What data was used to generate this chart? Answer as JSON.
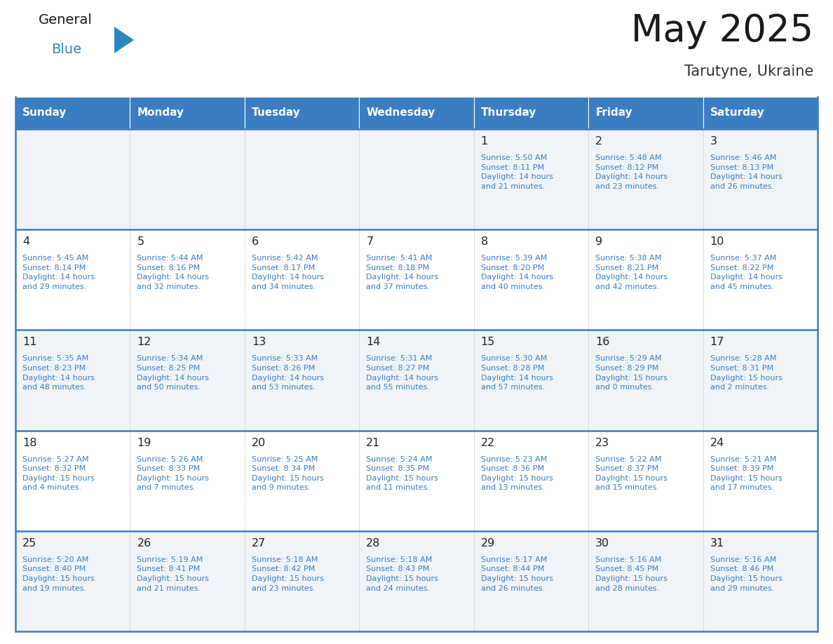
{
  "title": "May 2025",
  "subtitle": "Tarutyne, Ukraine",
  "days_of_week": [
    "Sunday",
    "Monday",
    "Tuesday",
    "Wednesday",
    "Thursday",
    "Friday",
    "Saturday"
  ],
  "header_bg": "#3A7DC0",
  "header_text": "#FFFFFF",
  "row_bg_light": "#F0F4F8",
  "row_bg_white": "#FFFFFF",
  "cell_text_color": "#3A7DC0",
  "day_num_color": "#222222",
  "separator_color": "#3A7DC0",
  "calendar_data": [
    [
      "",
      "",
      "",
      "",
      "1\nSunrise: 5:50 AM\nSunset: 8:11 PM\nDaylight: 14 hours\nand 21 minutes.",
      "2\nSunrise: 5:48 AM\nSunset: 8:12 PM\nDaylight: 14 hours\nand 23 minutes.",
      "3\nSunrise: 5:46 AM\nSunset: 8:13 PM\nDaylight: 14 hours\nand 26 minutes."
    ],
    [
      "4\nSunrise: 5:45 AM\nSunset: 8:14 PM\nDaylight: 14 hours\nand 29 minutes.",
      "5\nSunrise: 5:44 AM\nSunset: 8:16 PM\nDaylight: 14 hours\nand 32 minutes.",
      "6\nSunrise: 5:42 AM\nSunset: 8:17 PM\nDaylight: 14 hours\nand 34 minutes.",
      "7\nSunrise: 5:41 AM\nSunset: 8:18 PM\nDaylight: 14 hours\nand 37 minutes.",
      "8\nSunrise: 5:39 AM\nSunset: 8:20 PM\nDaylight: 14 hours\nand 40 minutes.",
      "9\nSunrise: 5:38 AM\nSunset: 8:21 PM\nDaylight: 14 hours\nand 42 minutes.",
      "10\nSunrise: 5:37 AM\nSunset: 8:22 PM\nDaylight: 14 hours\nand 45 minutes."
    ],
    [
      "11\nSunrise: 5:35 AM\nSunset: 8:23 PM\nDaylight: 14 hours\nand 48 minutes.",
      "12\nSunrise: 5:34 AM\nSunset: 8:25 PM\nDaylight: 14 hours\nand 50 minutes.",
      "13\nSunrise: 5:33 AM\nSunset: 8:26 PM\nDaylight: 14 hours\nand 53 minutes.",
      "14\nSunrise: 5:31 AM\nSunset: 8:27 PM\nDaylight: 14 hours\nand 55 minutes.",
      "15\nSunrise: 5:30 AM\nSunset: 8:28 PM\nDaylight: 14 hours\nand 57 minutes.",
      "16\nSunrise: 5:29 AM\nSunset: 8:29 PM\nDaylight: 15 hours\nand 0 minutes.",
      "17\nSunrise: 5:28 AM\nSunset: 8:31 PM\nDaylight: 15 hours\nand 2 minutes."
    ],
    [
      "18\nSunrise: 5:27 AM\nSunset: 8:32 PM\nDaylight: 15 hours\nand 4 minutes.",
      "19\nSunrise: 5:26 AM\nSunset: 8:33 PM\nDaylight: 15 hours\nand 7 minutes.",
      "20\nSunrise: 5:25 AM\nSunset: 8:34 PM\nDaylight: 15 hours\nand 9 minutes.",
      "21\nSunrise: 5:24 AM\nSunset: 8:35 PM\nDaylight: 15 hours\nand 11 minutes.",
      "22\nSunrise: 5:23 AM\nSunset: 8:36 PM\nDaylight: 15 hours\nand 13 minutes.",
      "23\nSunrise: 5:22 AM\nSunset: 8:37 PM\nDaylight: 15 hours\nand 15 minutes.",
      "24\nSunrise: 5:21 AM\nSunset: 8:39 PM\nDaylight: 15 hours\nand 17 minutes."
    ],
    [
      "25\nSunrise: 5:20 AM\nSunset: 8:40 PM\nDaylight: 15 hours\nand 19 minutes.",
      "26\nSunrise: 5:19 AM\nSunset: 8:41 PM\nDaylight: 15 hours\nand 21 minutes.",
      "27\nSunrise: 5:18 AM\nSunset: 8:42 PM\nDaylight: 15 hours\nand 23 minutes.",
      "28\nSunrise: 5:18 AM\nSunset: 8:43 PM\nDaylight: 15 hours\nand 24 minutes.",
      "29\nSunrise: 5:17 AM\nSunset: 8:44 PM\nDaylight: 15 hours\nand 26 minutes.",
      "30\nSunrise: 5:16 AM\nSunset: 8:45 PM\nDaylight: 15 hours\nand 28 minutes.",
      "31\nSunrise: 5:16 AM\nSunset: 8:46 PM\nDaylight: 15 hours\nand 29 minutes."
    ]
  ],
  "logo_general_color": "#1a1a1a",
  "logo_blue_color": "#2E86C1",
  "fig_width": 11.88,
  "fig_height": 9.18
}
